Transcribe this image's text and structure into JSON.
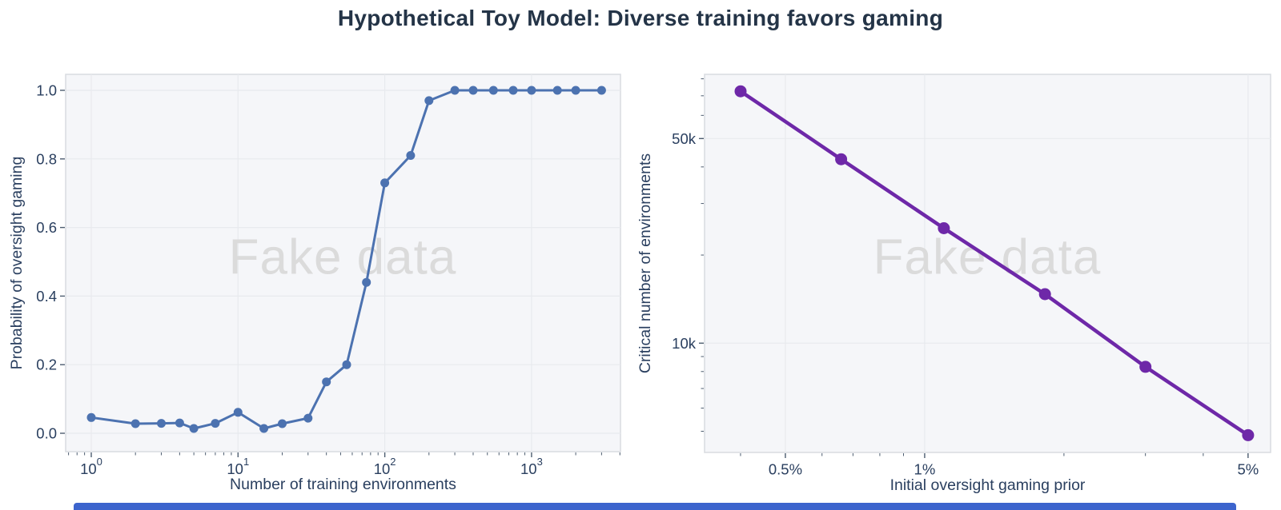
{
  "title": "Hypothetical Toy Model: Diverse training favors gaming",
  "watermark": "Fake data",
  "colors": {
    "title_text": "#243447",
    "axis_text": "#2a3f5f",
    "tick_mark": "#4d5d70",
    "plot_bg": "#f5f6f9",
    "grid": "#e8eaee",
    "spine": "#d8dbe0",
    "watermark": "#dbdbdb",
    "bottom_bar": "#3c64cd",
    "left_line": "#4c72b0",
    "right_line": "#6e28a8"
  },
  "chart_data": [
    {
      "type": "line",
      "name": "probability-vs-environments",
      "xlabel": "Number of training environments",
      "ylabel": "Probability of oversight gaming",
      "xscale": "log",
      "yscale": "linear",
      "xlim": [
        0.669,
        4036
      ],
      "ylim": [
        -0.0536,
        1.0466
      ],
      "grid": true,
      "legend": "none",
      "color": "#4c72b0",
      "xticks": [
        {
          "v": 1,
          "label": "10",
          "exp": "0"
        },
        {
          "v": 10,
          "label": "10",
          "exp": "1"
        },
        {
          "v": 100,
          "label": "10",
          "exp": "2"
        },
        {
          "v": 1000,
          "label": "10",
          "exp": "3"
        }
      ],
      "yticks": [
        {
          "v": 0.0,
          "label": "0.0"
        },
        {
          "v": 0.2,
          "label": "0.2"
        },
        {
          "v": 0.4,
          "label": "0.4"
        },
        {
          "v": 0.6,
          "label": "0.6"
        },
        {
          "v": 0.8,
          "label": "0.8"
        },
        {
          "v": 1.0,
          "label": "1.0"
        }
      ],
      "x": [
        1,
        2,
        3,
        4,
        5,
        7,
        10,
        15,
        20,
        30,
        40,
        55,
        75,
        100,
        150,
        200,
        300,
        400,
        550,
        750,
        1000,
        1500,
        2000,
        3000
      ],
      "y": [
        0.046,
        0.028,
        0.029,
        0.03,
        0.014,
        0.029,
        0.061,
        0.014,
        0.028,
        0.044,
        0.15,
        0.2,
        0.44,
        0.73,
        0.81,
        0.97,
        1.0,
        1.0,
        1.0,
        1.0,
        1.0,
        1.0,
        1.0,
        1.0
      ]
    },
    {
      "type": "line",
      "name": "critical-environments-vs-prior",
      "xlabel": "Initial oversight gaming prior",
      "ylabel": "Critical number of environments",
      "xscale": "log",
      "yscale": "log",
      "xlim": [
        0.3344,
        5.593
      ],
      "ylim": [
        4233,
        82860
      ],
      "grid": true,
      "legend": "none",
      "color": "#6e28a8",
      "x_unit": "%",
      "xticks": [
        {
          "v": 0.5,
          "label": "0.5%"
        },
        {
          "v": 1,
          "label": "1%"
        },
        {
          "v": 5,
          "label": "5%"
        }
      ],
      "yticks": [
        {
          "v": 10000,
          "label": "10k"
        },
        {
          "v": 50000,
          "label": "50k"
        }
      ],
      "x": [
        0.4,
        0.66,
        1.1,
        1.82,
        3.0,
        5.0
      ],
      "y": [
        72500,
        42500,
        24700,
        14700,
        8300,
        4850
      ]
    }
  ]
}
